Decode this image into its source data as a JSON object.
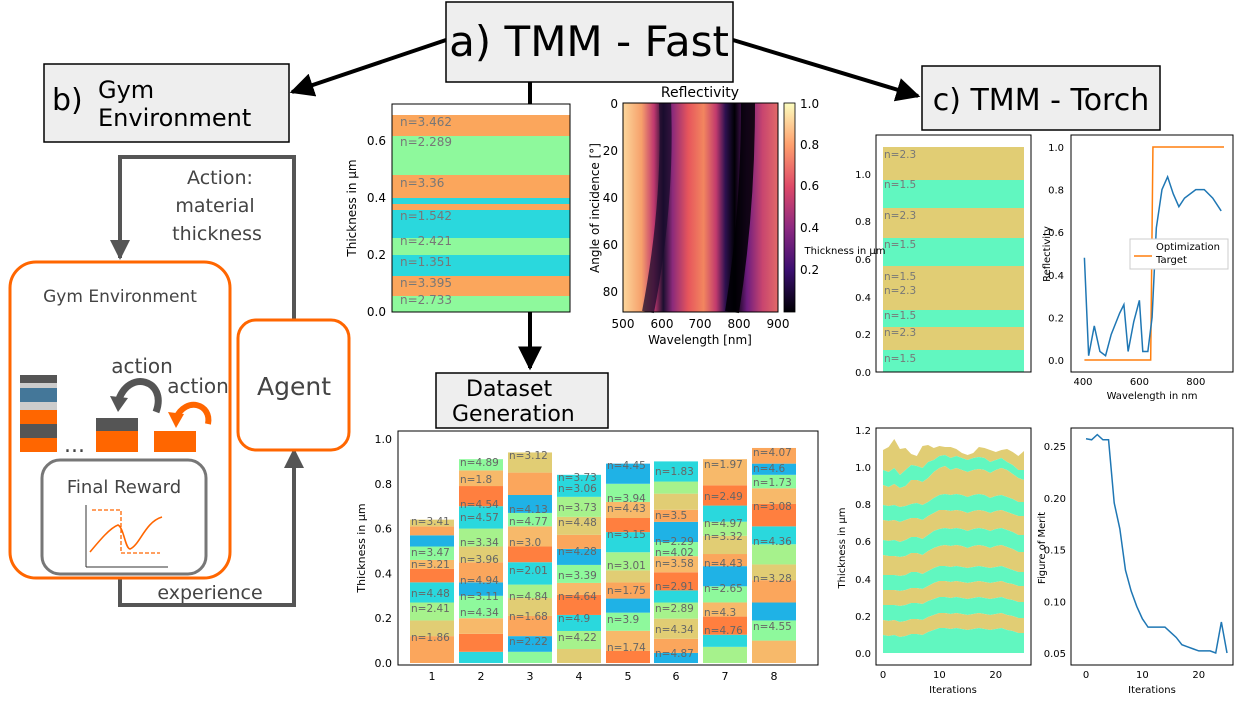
{
  "titles": {
    "a": "a) TMM - Fast",
    "b_prefix": "b)",
    "b_line1": "Gym",
    "b_line2": "Environment",
    "c": "c) TMM - Torch",
    "dataset_line1": "Dataset",
    "dataset_line2": "Generation"
  },
  "gym": {
    "action_line1": "Action:",
    "action_line2": "material",
    "action_line3": "thickness",
    "env_title": "Gym Environment",
    "agent": "Agent",
    "action1": "action",
    "action2": "action",
    "dots": "...",
    "final_reward": "Final Reward",
    "experience": "experience"
  },
  "stack_a": {
    "ylabel": "Thickness in µm",
    "yticks": [
      "0.0",
      "0.2",
      "0.4",
      "0.6"
    ],
    "labels": [
      "n=3.462",
      "n=2.289",
      "n=3.36",
      "n=1.542",
      "n=2.421",
      "n=1.351",
      "n=3.395",
      "n=2.733"
    ]
  },
  "heatmap": {
    "title": "Reflectivity",
    "xlabel": "Wavelength [nm]",
    "ylabel": "Angle of incidence [°]",
    "xticks": [
      "500",
      "600",
      "700",
      "800",
      "900"
    ],
    "yticks": [
      "0",
      "20",
      "40",
      "60",
      "80"
    ],
    "cbar_ticks": [
      "1.0",
      "0.8",
      "0.6",
      "0.4",
      "0.2"
    ]
  },
  "dataset_chart": {
    "ylabel": "Thickness in µm",
    "yticks": [
      "0.0",
      "0.2",
      "0.4",
      "0.6",
      "0.8",
      "1.0"
    ],
    "xticks": [
      "1",
      "2",
      "3",
      "4",
      "5",
      "6",
      "7",
      "8"
    ],
    "labels": [
      [
        "n=3.41",
        "n=3.47",
        "n=3.21",
        "n=4.48",
        "n=2.41",
        "n=1.86"
      ],
      [
        "n=4.89",
        "n=1.8",
        "n=4.54",
        "n=4.57",
        "n=3.34",
        "n=3.96",
        "n=4.94",
        "n=3.11",
        "n=4.34"
      ],
      [
        "n=3.12",
        "n=4.13",
        "n=4.77",
        "n=3.0",
        "n=2.01",
        "n=4.84",
        "n=1.68",
        "n=2.22"
      ],
      [
        "n=3.73",
        "n=3.06",
        "n=3.73",
        "n=4.48",
        "n=4.28",
        "n=3.39",
        "n=4.64",
        "n=4.9",
        "n=4.22"
      ],
      [
        "n=4.45",
        "n=3.94",
        "n=4.43",
        "n=3.15",
        "n=3.01",
        "n=1.75",
        "n=3.9",
        "n=1.74"
      ],
      [
        "n=1.83",
        "n=3.5",
        "n=2.29",
        "n=4.02",
        "n=3.58",
        "n=2.91",
        "n=2.89",
        "n=4.34",
        "n=4.87"
      ],
      [
        "n=1.97",
        "n=2.49",
        "n=4.97",
        "n=3.32",
        "n=4.43",
        "n=2.65",
        "n=4.3",
        "n=4.76"
      ],
      [
        "n=4.07",
        "n=4.6",
        "n=1.73",
        "n=3.08",
        "n=4.36",
        "n=3.28",
        "n=4.55"
      ]
    ]
  },
  "torch_stack": {
    "ylabel": "Thickness in µm",
    "yticks": [
      "0.0",
      "0.2",
      "0.4",
      "0.6",
      "0.8",
      "1.0"
    ],
    "labels": [
      "n=2.3",
      "n=1.5",
      "n=2.3",
      "n=1.5",
      "n=1.5",
      "n=2.3",
      "n=1.5",
      "n=2.3",
      "n=1.5"
    ]
  },
  "torch_refl": {
    "ylabel": "Reflectivity",
    "xlabel": "Wavelength in nm",
    "xticks": [
      "400",
      "600",
      "800"
    ],
    "yticks": [
      "0.0",
      "0.2",
      "0.4",
      "0.6",
      "0.8",
      "1.0"
    ],
    "legend_line1": "Optimization",
    "legend_line2": "Target"
  },
  "torch_iter": {
    "ylabel": "Thickness in µm",
    "xlabel": "Iterations",
    "xticks": [
      "0",
      "10",
      "20"
    ],
    "yticks": [
      "0.0",
      "0.2",
      "0.4",
      "0.6",
      "0.8",
      "1.0",
      "1.2"
    ]
  },
  "torch_fom": {
    "ylabel": "Figure of Merit",
    "xlabel": "Iterations",
    "xticks": [
      "0",
      "10",
      "20"
    ],
    "yticks": [
      "0.05",
      "0.10",
      "0.15",
      "0.20",
      "0.25"
    ]
  },
  "colors": {
    "orange": "#ff6600",
    "dark": "#555555",
    "navy_blue": "#447799",
    "mat_orange": "#fba65c",
    "mat_green": "#8ef99c",
    "mat_cyan": "#2ad8dd",
    "mat_khaki": "#e1cd74",
    "mat_teal": "#61f7c0"
  }
}
